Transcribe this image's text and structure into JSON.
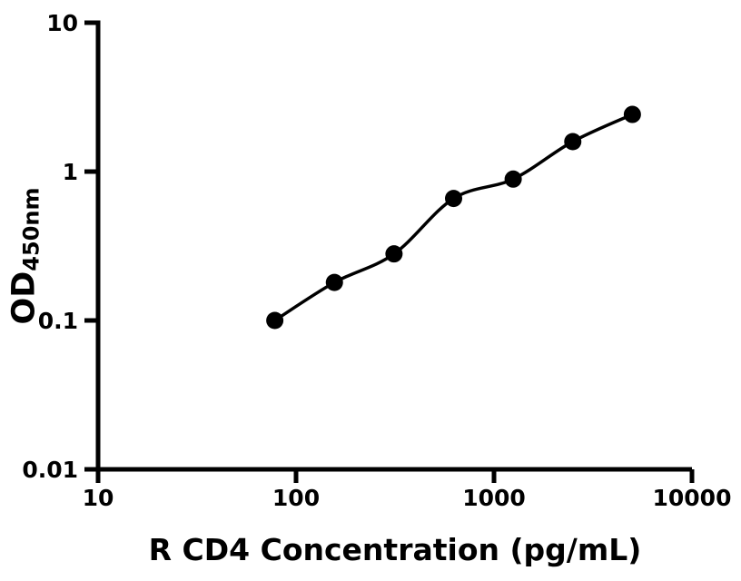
{
  "chart_data": {
    "type": "scatter",
    "xlabel": "R CD4 Concentration (pg/mL)",
    "ylabel": "OD",
    "ylabel_sub": "450nm",
    "x_scale": "log",
    "y_scale": "log",
    "xlim": [
      10,
      10000
    ],
    "ylim": [
      0.01,
      10
    ],
    "x_ticks": [
      10,
      100,
      1000,
      10000
    ],
    "x_tick_labels": [
      "10",
      "100",
      "1000",
      "10000"
    ],
    "y_ticks": [
      0.01,
      0.1,
      1,
      10
    ],
    "y_tick_labels": [
      "0.01",
      "0.1",
      "1",
      "10"
    ],
    "grid": false,
    "legend": "none",
    "series": [
      {
        "marker": "filled-circle",
        "line": "smooth-fit",
        "x": [
          78.125,
          156.25,
          312.5,
          625,
          1250,
          2500,
          5000
        ],
        "y": [
          0.1,
          0.18,
          0.28,
          0.66,
          0.89,
          1.59,
          2.42
        ]
      }
    ],
    "colors": {
      "ink": "#000000",
      "background": "#ffffff"
    }
  }
}
